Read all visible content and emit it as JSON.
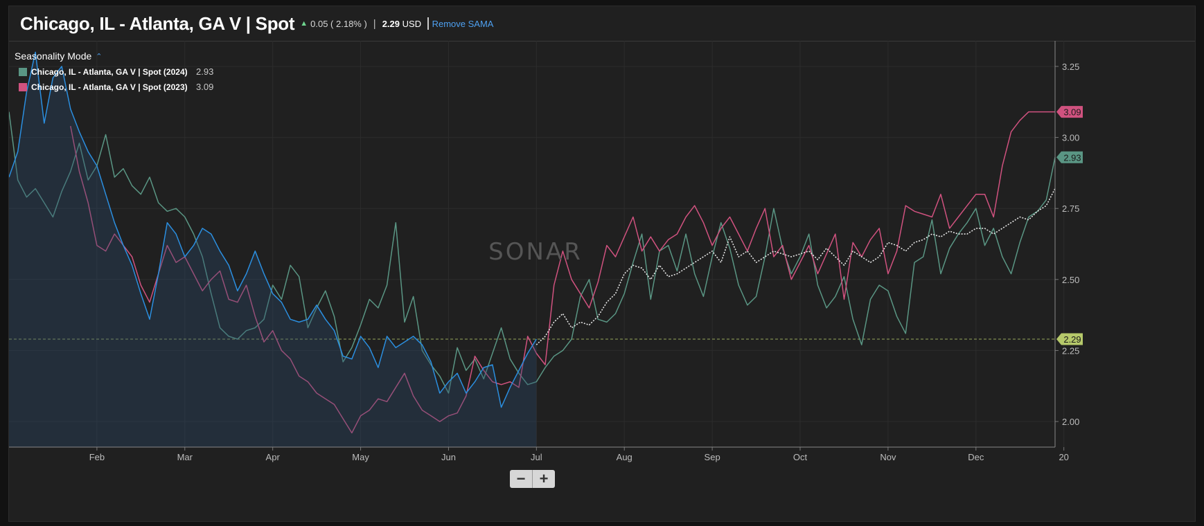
{
  "header": {
    "title": "Chicago, IL - Atlanta, GA V | Spot",
    "change": "0.05 ( 2.18% )",
    "price_value": "2.29",
    "price_unit": "USD",
    "remove_label": "Remove SAMA"
  },
  "legend": {
    "mode_label": "Seasonality Mode",
    "items": [
      {
        "name": "Chicago, IL - Atlanta, GA V | Spot (2024)",
        "value": "2.93",
        "color": "#5a9684"
      },
      {
        "name": "Chicago, IL - Atlanta, GA V | Spot (2023)",
        "value": "3.09",
        "color": "#d0527f"
      }
    ]
  },
  "watermark": "SONAR",
  "zoom": {
    "minus": "−",
    "plus": "+"
  },
  "colors": {
    "series_2024": "#5a9684",
    "series_2023": "#d0527f",
    "series_current": "#2b8fe0",
    "sama": "#e6e6e6",
    "current_price_line": "#b6c96a",
    "background": "#202020"
  },
  "chart_data": {
    "type": "line",
    "x_tick_labels": [
      "Feb",
      "Mar",
      "Apr",
      "May",
      "Jun",
      "Jul",
      "Aug",
      "Sep",
      "Oct",
      "Nov",
      "Dec",
      "20"
    ],
    "y_ticks": [
      2.0,
      2.25,
      2.5,
      2.75,
      3.0,
      3.25
    ],
    "ylim": [
      1.91,
      3.34
    ],
    "grid": true,
    "reference_line": {
      "value": 2.29,
      "label": "2.29"
    },
    "end_labels": [
      {
        "value": 3.09,
        "label": "3.09",
        "color": "#d0527f"
      },
      {
        "value": 2.93,
        "label": "2.93",
        "color": "#5a9684"
      },
      {
        "value": 2.29,
        "label": "2.29",
        "color": "#b6c96a"
      }
    ],
    "series": [
      {
        "name": "Chicago, IL - Atlanta, GA V | Spot (2024)",
        "color": "#5a9684",
        "x": [
          0,
          0.1,
          0.2,
          0.3,
          0.4,
          0.5,
          0.6,
          0.7,
          0.8,
          0.9,
          1.0,
          1.1,
          1.2,
          1.3,
          1.4,
          1.5,
          1.6,
          1.7,
          1.8,
          1.9,
          2.0,
          2.1,
          2.2,
          2.3,
          2.4,
          2.5,
          2.6,
          2.7,
          2.8,
          2.9,
          3.0,
          3.1,
          3.2,
          3.3,
          3.4,
          3.5,
          3.6,
          3.7,
          3.8,
          3.9,
          4.0,
          4.1,
          4.2,
          4.3,
          4.4,
          4.5,
          4.6,
          4.7,
          4.8,
          4.9,
          5.0,
          5.1,
          5.2,
          5.3,
          5.4,
          5.5,
          5.6,
          5.7,
          5.8,
          5.9,
          6.0,
          6.1,
          6.2,
          6.3,
          6.4,
          6.5,
          6.6,
          6.7,
          6.8,
          6.9,
          7.0,
          7.1,
          7.2,
          7.3,
          7.4,
          7.5,
          7.6,
          7.7,
          7.8,
          7.9,
          8.0,
          8.1,
          8.2,
          8.3,
          8.4,
          8.5,
          8.6,
          8.7,
          8.8,
          8.9,
          9.0,
          9.1,
          9.2,
          9.3,
          9.4,
          9.5,
          9.6,
          9.7,
          9.8,
          9.9,
          10.0,
          10.1,
          10.2,
          10.3,
          10.4,
          10.5,
          10.6,
          10.7,
          10.8,
          10.9,
          11.0,
          11.1,
          11.2,
          11.3,
          11.4,
          11.5,
          11.6,
          11.7,
          11.8,
          11.9
        ],
        "values": [
          3.09,
          2.85,
          2.79,
          2.82,
          2.77,
          2.72,
          2.81,
          2.88,
          2.98,
          2.85,
          2.9,
          3.01,
          2.86,
          2.89,
          2.83,
          2.8,
          2.86,
          2.77,
          2.74,
          2.75,
          2.72,
          2.66,
          2.58,
          2.45,
          2.33,
          2.3,
          2.29,
          2.32,
          2.33,
          2.36,
          2.48,
          2.43,
          2.55,
          2.51,
          2.33,
          2.4,
          2.46,
          2.37,
          2.21,
          2.26,
          2.34,
          2.43,
          2.4,
          2.48,
          2.7,
          2.35,
          2.44,
          2.25,
          2.2,
          2.16,
          2.1,
          2.26,
          2.18,
          2.22,
          2.15,
          2.24,
          2.33,
          2.22,
          2.17,
          2.13,
          2.14,
          2.19,
          2.23,
          2.25,
          2.29,
          2.44,
          2.5,
          2.36,
          2.35,
          2.38,
          2.45,
          2.56,
          2.66,
          2.43,
          2.6,
          2.62,
          2.53,
          2.66,
          2.52,
          2.44,
          2.58,
          2.7,
          2.61,
          2.48,
          2.41,
          2.44,
          2.58,
          2.75,
          2.61,
          2.52,
          2.58,
          2.66,
          2.48,
          2.4,
          2.44,
          2.51,
          2.36,
          2.27,
          2.43,
          2.48,
          2.46,
          2.37,
          2.31,
          2.56,
          2.58,
          2.71,
          2.52,
          2.61,
          2.66,
          2.7,
          2.75,
          2.62,
          2.68,
          2.58,
          2.52,
          2.63,
          2.72,
          2.74,
          2.78,
          2.93
        ]
      },
      {
        "name": "Chicago, IL - Atlanta, GA V | Spot (2023)",
        "color": "#d0527f",
        "x": [
          0.7,
          0.8,
          0.9,
          1.0,
          1.1,
          1.2,
          1.3,
          1.4,
          1.5,
          1.6,
          1.7,
          1.8,
          1.9,
          2.0,
          2.1,
          2.2,
          2.3,
          2.4,
          2.5,
          2.6,
          2.7,
          2.8,
          2.9,
          3.0,
          3.1,
          3.2,
          3.3,
          3.4,
          3.5,
          3.6,
          3.7,
          3.8,
          3.9,
          4.0,
          4.1,
          4.2,
          4.3,
          4.4,
          4.5,
          4.6,
          4.7,
          4.8,
          4.9,
          5.0,
          5.1,
          5.2,
          5.3,
          5.4,
          5.5,
          5.6,
          5.7,
          5.8,
          5.9,
          6.0,
          6.1,
          6.2,
          6.3,
          6.4,
          6.5,
          6.6,
          6.7,
          6.8,
          6.9,
          7.0,
          7.1,
          7.2,
          7.3,
          7.4,
          7.5,
          7.6,
          7.7,
          7.8,
          7.9,
          8.0,
          8.1,
          8.2,
          8.3,
          8.4,
          8.5,
          8.6,
          8.7,
          8.8,
          8.9,
          9.0,
          9.1,
          9.2,
          9.3,
          9.4,
          9.5,
          9.6,
          9.7,
          9.8,
          9.9,
          10.0,
          10.1,
          10.2,
          10.3,
          10.4,
          10.5,
          10.6,
          10.7,
          10.8,
          10.9,
          11.0,
          11.1,
          11.2,
          11.3,
          11.4,
          11.5,
          11.6,
          11.7,
          11.8,
          11.9
        ],
        "values": [
          3.04,
          2.88,
          2.77,
          2.62,
          2.6,
          2.66,
          2.62,
          2.58,
          2.48,
          2.42,
          2.52,
          2.62,
          2.56,
          2.58,
          2.52,
          2.46,
          2.5,
          2.53,
          2.43,
          2.42,
          2.48,
          2.37,
          2.28,
          2.32,
          2.25,
          2.22,
          2.16,
          2.14,
          2.1,
          2.08,
          2.06,
          2.01,
          1.96,
          2.02,
          2.04,
          2.08,
          2.07,
          2.12,
          2.17,
          2.09,
          2.04,
          2.02,
          2.0,
          2.02,
          2.03,
          2.09,
          2.23,
          2.18,
          2.14,
          2.13,
          2.14,
          2.12,
          2.3,
          2.24,
          2.2,
          2.48,
          2.6,
          2.5,
          2.45,
          2.4,
          2.49,
          2.62,
          2.58,
          2.65,
          2.72,
          2.6,
          2.65,
          2.6,
          2.64,
          2.66,
          2.72,
          2.76,
          2.7,
          2.62,
          2.68,
          2.72,
          2.66,
          2.6,
          2.68,
          2.75,
          2.58,
          2.62,
          2.5,
          2.56,
          2.62,
          2.52,
          2.59,
          2.66,
          2.43,
          2.63,
          2.58,
          2.64,
          2.68,
          2.52,
          2.6,
          2.76,
          2.74,
          2.73,
          2.72,
          2.8,
          2.68,
          2.72,
          2.76,
          2.8,
          2.8,
          2.72,
          2.9,
          3.02,
          3.06,
          3.09,
          3.09,
          3.09,
          3.09
        ]
      },
      {
        "name": "",
        "color": "#2b8fe0",
        "filled": true,
        "x": [
          0,
          0.1,
          0.2,
          0.3,
          0.4,
          0.5,
          0.6,
          0.7,
          0.8,
          0.9,
          1.0,
          1.1,
          1.2,
          1.3,
          1.4,
          1.5,
          1.6,
          1.7,
          1.8,
          1.9,
          2.0,
          2.1,
          2.2,
          2.3,
          2.4,
          2.5,
          2.6,
          2.7,
          2.8,
          2.9,
          3.0,
          3.1,
          3.2,
          3.3,
          3.4,
          3.5,
          3.6,
          3.7,
          3.8,
          3.9,
          4.0,
          4.1,
          4.2,
          4.3,
          4.4,
          4.5,
          4.6,
          4.7,
          4.8,
          4.9,
          5.0,
          5.1,
          5.2,
          5.3,
          5.4,
          5.5,
          5.6,
          5.7,
          5.8,
          5.9,
          6.0
        ],
        "values": [
          2.86,
          2.95,
          3.16,
          3.3,
          3.05,
          3.21,
          3.25,
          3.1,
          3.02,
          2.95,
          2.9,
          2.8,
          2.7,
          2.62,
          2.55,
          2.45,
          2.36,
          2.52,
          2.7,
          2.66,
          2.58,
          2.62,
          2.68,
          2.66,
          2.6,
          2.55,
          2.46,
          2.52,
          2.6,
          2.52,
          2.45,
          2.42,
          2.36,
          2.35,
          2.36,
          2.41,
          2.36,
          2.32,
          2.23,
          2.22,
          2.3,
          2.26,
          2.19,
          2.3,
          2.26,
          2.28,
          2.3,
          2.27,
          2.21,
          2.1,
          2.14,
          2.17,
          2.1,
          2.14,
          2.19,
          2.2,
          2.05,
          2.12,
          2.18,
          2.24,
          2.29
        ]
      },
      {
        "name": "",
        "color": "#e6e6e6",
        "dashed": true,
        "x": [
          6.0,
          6.1,
          6.2,
          6.3,
          6.4,
          6.5,
          6.6,
          6.7,
          6.8,
          6.9,
          7.0,
          7.1,
          7.2,
          7.3,
          7.4,
          7.5,
          7.6,
          7.7,
          7.8,
          7.9,
          8.0,
          8.1,
          8.2,
          8.3,
          8.4,
          8.5,
          8.6,
          8.7,
          8.8,
          8.9,
          9.0,
          9.1,
          9.2,
          9.3,
          9.4,
          9.5,
          9.6,
          9.7,
          9.8,
          9.9,
          10.0,
          10.1,
          10.2,
          10.3,
          10.4,
          10.5,
          10.6,
          10.7,
          10.8,
          10.9,
          11.0,
          11.1,
          11.2,
          11.3,
          11.4,
          11.5,
          11.6,
          11.7,
          11.8,
          11.9
        ],
        "values": [
          2.27,
          2.3,
          2.35,
          2.38,
          2.33,
          2.35,
          2.34,
          2.37,
          2.42,
          2.45,
          2.52,
          2.55,
          2.54,
          2.5,
          2.55,
          2.51,
          2.52,
          2.54,
          2.56,
          2.58,
          2.6,
          2.56,
          2.65,
          2.58,
          2.6,
          2.56,
          2.58,
          2.6,
          2.59,
          2.58,
          2.59,
          2.6,
          2.57,
          2.61,
          2.58,
          2.55,
          2.6,
          2.58,
          2.56,
          2.58,
          2.63,
          2.62,
          2.6,
          2.63,
          2.64,
          2.66,
          2.65,
          2.67,
          2.66,
          2.66,
          2.68,
          2.68,
          2.66,
          2.68,
          2.7,
          2.72,
          2.71,
          2.74,
          2.76,
          2.82
        ]
      }
    ]
  }
}
